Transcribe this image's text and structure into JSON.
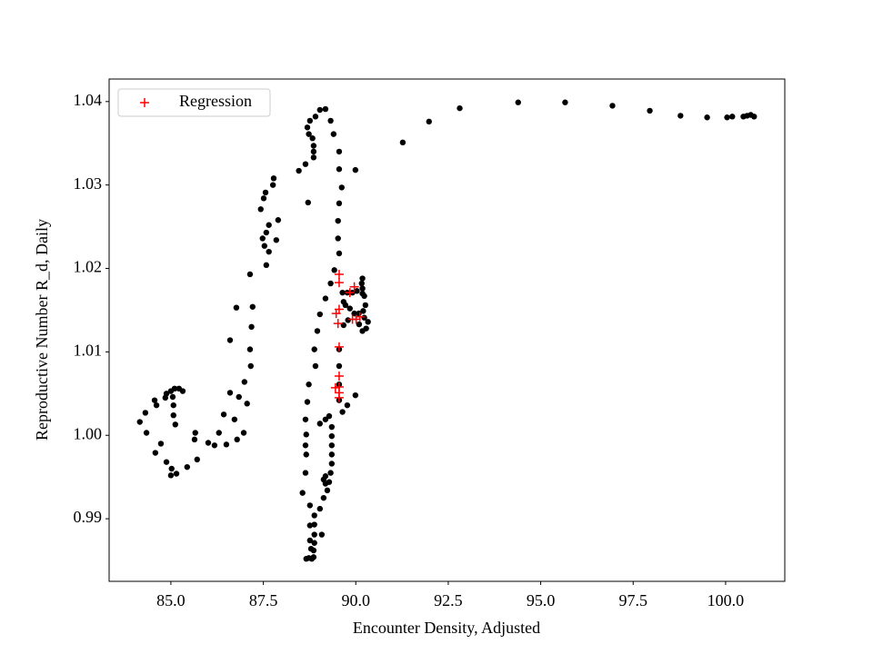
{
  "chart_data": {
    "type": "scatter",
    "xlabel": "Encounter Density, Adjusted",
    "ylabel": "Reproductive Number R_d, Daily",
    "xlim": [
      83.33,
      101.6
    ],
    "ylim": [
      0.9825,
      1.0427
    ],
    "xticks": [
      {
        "value": 85,
        "label": "85.0"
      },
      {
        "value": 87.5,
        "label": "87.5"
      },
      {
        "value": 90,
        "label": "90.0"
      },
      {
        "value": 92.5,
        "label": "92.5"
      },
      {
        "value": 95,
        "label": "95.0"
      },
      {
        "value": 97.5,
        "label": "97.5"
      },
      {
        "value": 100,
        "label": "100.0"
      }
    ],
    "yticks": [
      0.99,
      {
        "value": 1,
        "label": "1.00"
      },
      1.01,
      1.02,
      1.03,
      1.04
    ],
    "legend": "upper left",
    "series": [
      {
        "color": "#000000",
        "marker": "o",
        "x": [
          100.77,
          100.68,
          100.58,
          100.48,
          100.18,
          100.04,
          99.5,
          98.78,
          97.95,
          96.94,
          95.66,
          94.39,
          92.81,
          91.98,
          91.27,
          89.03,
          89.18,
          88.91,
          88.76,
          88.69,
          88.73,
          88.83,
          88.86,
          88.86,
          88.86,
          88.64,
          88.46,
          89.32,
          89.4,
          89.55,
          89.55,
          89.62,
          89.55,
          89.52,
          89.52,
          89.55,
          89.99,
          88.71,
          89.42,
          89.32,
          89.18,
          89.03,
          88.96,
          88.88,
          88.91,
          88.73,
          88.69,
          89.03,
          89.18,
          89.28,
          89.55,
          89.55,
          89.55,
          89.55,
          89.64,
          89.77,
          89.99,
          89.64,
          89.77,
          89.91,
          90.03,
          90.18,
          90.18,
          90.16,
          90.18,
          90.23,
          90.26,
          90.23,
          90.33,
          90.28,
          90.18,
          90.09,
          89.96,
          89.84,
          89.72,
          89.67,
          90.08,
          90.2,
          89.79,
          89.67,
          89.35,
          89.35,
          89.35,
          89.35,
          89.35,
          89.32,
          89.28,
          89.23,
          89.13,
          89.03,
          88.88,
          88.88,
          88.88,
          88.88,
          88.86,
          88.86,
          88.73,
          88.81,
          88.64,
          88.66,
          88.64,
          88.66,
          88.64,
          88.56,
          88.76,
          88.76,
          88.76,
          88.79,
          88.66,
          89.13,
          89.18,
          89.18,
          89.08,
          87.78,
          87.76,
          87.56,
          87.51,
          87.43,
          87.9,
          87.65,
          87.58,
          87.48,
          87.85,
          87.53,
          87.65,
          87.58,
          87.14,
          87.21,
          86.77,
          87.18,
          86.6,
          87.14,
          87.16,
          86.99,
          86.6,
          87.06,
          86.84,
          86.43,
          86.72,
          86.97,
          86.79,
          86.3,
          86.5,
          86.18,
          86.01,
          85.71,
          85.44,
          85.66,
          85.64,
          85.32,
          85.22,
          85.1,
          85.0,
          84.88,
          84.85,
          84.56,
          84.61,
          85.05,
          85.07,
          85.07,
          85.12,
          84.31,
          84.16,
          84.34,
          84.73,
          84.58,
          84.88,
          85.02,
          85.15,
          85.0
        ],
        "y": [
          1.0382,
          1.0384,
          1.0383,
          1.0382,
          1.0382,
          1.0381,
          1.0381,
          1.0383,
          1.0389,
          1.0395,
          1.0399,
          1.0399,
          1.0392,
          1.0376,
          1.0351,
          1.039,
          1.0391,
          1.0382,
          1.0377,
          1.0369,
          1.0361,
          1.0356,
          1.0347,
          1.034,
          1.0333,
          1.0325,
          1.0317,
          1.0377,
          1.0361,
          1.034,
          1.0319,
          1.0297,
          1.0278,
          1.0257,
          1.0236,
          1.0218,
          1.0318,
          1.0279,
          1.0198,
          1.0182,
          1.0164,
          1.0145,
          1.0125,
          1.0103,
          1.0083,
          1.0061,
          1.004,
          1.0014,
          1.0019,
          1.0023,
          1.0103,
          1.0083,
          1.0061,
          1.0042,
          1.0028,
          1.0036,
          1.0048,
          1.0171,
          1.0171,
          1.0171,
          1.0173,
          1.017,
          1.0188,
          1.0182,
          1.0176,
          1.0167,
          1.0156,
          1.0141,
          1.0136,
          1.0128,
          1.0125,
          1.0133,
          1.0146,
          1.0152,
          1.0156,
          1.016,
          1.0146,
          1.0149,
          1.0138,
          1.0132,
          1.001,
          0.9999,
          0.9988,
          0.9977,
          0.9966,
          0.9955,
          0.9944,
          0.9934,
          0.9925,
          0.9912,
          0.9904,
          0.9893,
          0.9881,
          0.9871,
          0.9862,
          0.9854,
          0.9853,
          0.9852,
          1.0019,
          1.0001,
          0.9988,
          0.9977,
          0.9955,
          0.9931,
          0.9916,
          0.9892,
          0.9874,
          0.9864,
          0.9852,
          0.9947,
          0.9951,
          0.9942,
          0.9881,
          1.0308,
          1.03,
          1.0291,
          1.0284,
          1.0271,
          1.0258,
          1.0252,
          1.0243,
          1.0236,
          1.0234,
          1.0227,
          1.022,
          1.0204,
          1.0193,
          1.0154,
          1.0153,
          1.013,
          1.0114,
          1.0103,
          1.0083,
          1.0064,
          1.0051,
          1.0038,
          1.0046,
          1.0025,
          1.0019,
          1.0003,
          0.9995,
          1.0003,
          0.9989,
          0.9988,
          0.9991,
          0.9971,
          0.9962,
          1.0003,
          0.9995,
          1.0053,
          1.0056,
          1.0056,
          1.0053,
          1.005,
          1.0045,
          1.0042,
          1.0036,
          1.0046,
          1.0036,
          1.0024,
          1.0013,
          1.0027,
          1.0016,
          1.0003,
          0.999,
          0.9979,
          0.9968,
          0.996,
          0.9954,
          0.9952
        ]
      },
      {
        "name": "Regression",
        "color": "#ff0000",
        "marker": "+",
        "x": [
          89.55,
          89.55,
          89.55,
          89.47,
          89.52,
          89.55,
          89.55,
          89.55,
          89.55,
          89.55,
          89.45,
          89.84,
          89.96,
          89.91,
          90.01,
          90.11
        ],
        "y": [
          1.0193,
          1.0183,
          1.0151,
          1.0146,
          1.0134,
          1.0106,
          1.0071,
          1.0058,
          1.0051,
          1.0045,
          1.0057,
          1.0171,
          1.0178,
          1.0139,
          1.0139,
          1.0142
        ]
      }
    ]
  }
}
